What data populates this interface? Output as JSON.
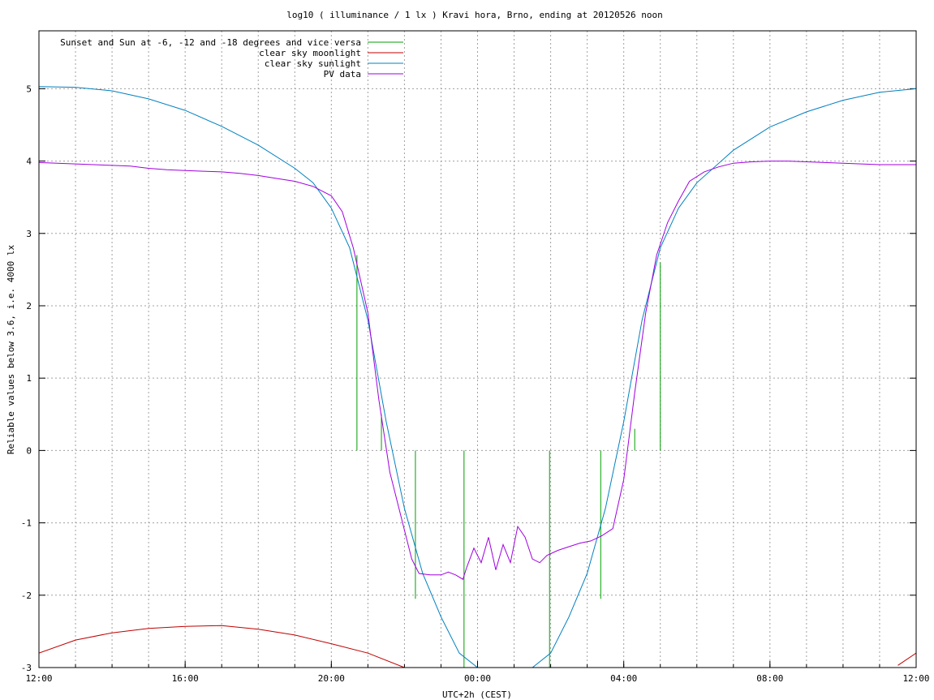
{
  "chart_data": {
    "type": "line",
    "title": "log10 ( illuminance / 1 lx ) Kravi hora, Brno, ending at 20120526 noon",
    "xlabel": "UTC+2h (CEST)",
    "ylabel": "Reliable values below 3.6, i.e. 4000 lx",
    "x_unit": "hours since 12:00 (day before)",
    "xlim": [
      0,
      24
    ],
    "ylim": [
      -3,
      5.8
    ],
    "x_ticks": [
      {
        "value": 0,
        "label": "12:00"
      },
      {
        "value": 4,
        "label": "16:00"
      },
      {
        "value": 8,
        "label": "20:00"
      },
      {
        "value": 12,
        "label": "00:00"
      },
      {
        "value": 16,
        "label": "04:00"
      },
      {
        "value": 20,
        "label": "08:00"
      },
      {
        "value": 24,
        "label": "12:00"
      }
    ],
    "y_ticks": [
      {
        "value": -3,
        "label": "-3"
      },
      {
        "value": -2,
        "label": "-2"
      },
      {
        "value": -1,
        "label": "-1"
      },
      {
        "value": 0,
        "label": "0"
      },
      {
        "value": 1,
        "label": "1"
      },
      {
        "value": 2,
        "label": "2"
      },
      {
        "value": 3,
        "label": "3"
      },
      {
        "value": 4,
        "label": "4"
      },
      {
        "value": 5,
        "label": "5"
      }
    ],
    "grid": true,
    "legend_position": "top-left",
    "series": [
      {
        "name": "Sunset and Sun at -6, -12 and -18 degrees and vice versa",
        "color": "#00a000",
        "style": "vertical-markers",
        "markers": [
          {
            "x": 8.7,
            "y_top": 2.7,
            "y_bottom": 0
          },
          {
            "x": 9.37,
            "y_top": 0.5,
            "y_bottom": 0
          },
          {
            "x": 10.3,
            "y_top": 0,
            "y_bottom": -2.05
          },
          {
            "x": 11.63,
            "y_top": 0,
            "y_bottom": -3
          },
          {
            "x": 13.97,
            "y_top": 0,
            "y_bottom": -3
          },
          {
            "x": 15.37,
            "y_top": 0,
            "y_bottom": -2.05
          },
          {
            "x": 16.3,
            "y_top": 0.3,
            "y_bottom": 0
          },
          {
            "x": 17.0,
            "y_top": 2.6,
            "y_bottom": 0
          }
        ]
      },
      {
        "name": "clear sky moonlight",
        "color": "#c00000",
        "style": "line",
        "x": [
          0,
          1,
          2,
          3,
          4,
          5,
          6,
          7,
          8,
          9,
          10,
          23.5,
          24
        ],
        "y": [
          -2.8,
          -2.62,
          -2.52,
          -2.46,
          -2.43,
          -2.42,
          -2.47,
          -2.55,
          -2.67,
          -2.8,
          -3.0,
          -2.97,
          -2.8
        ]
      },
      {
        "name": "clear sky sunlight",
        "color": "#0080c0",
        "style": "line",
        "x": [
          0,
          1,
          2,
          3,
          4,
          5,
          6,
          7,
          7.5,
          8,
          8.5,
          9,
          9.5,
          10,
          10.5,
          11,
          11.5,
          12,
          13.5,
          14,
          14.5,
          15,
          15.5,
          16,
          16.5,
          17,
          17.5,
          18,
          19,
          20,
          21,
          22,
          23,
          24
        ],
        "y": [
          5.03,
          5.02,
          4.97,
          4.86,
          4.7,
          4.48,
          4.22,
          3.9,
          3.7,
          3.35,
          2.8,
          1.8,
          0.4,
          -0.8,
          -1.7,
          -2.3,
          -2.8,
          -3.0,
          -3.0,
          -2.8,
          -2.3,
          -1.7,
          -0.8,
          0.4,
          1.8,
          2.8,
          3.35,
          3.7,
          4.15,
          4.47,
          4.68,
          4.84,
          4.95,
          5.0
        ]
      },
      {
        "name": "PV data",
        "color": "#a000e0",
        "style": "line",
        "x": [
          0,
          0.5,
          1,
          1.5,
          2,
          2.5,
          3,
          3.5,
          4,
          4.5,
          5,
          5.5,
          6,
          6.5,
          7,
          7.5,
          8,
          8.3,
          8.6,
          9,
          9.3,
          9.6,
          10,
          10.2,
          10.4,
          10.7,
          11,
          11.2,
          11.4,
          11.6,
          11.7,
          11.9,
          12.1,
          12.3,
          12.5,
          12.7,
          12.9,
          13.1,
          13.3,
          13.5,
          13.7,
          13.9,
          14.2,
          14.5,
          14.8,
          15.1,
          15.4,
          15.7,
          16,
          16.3,
          16.6,
          16.9,
          17.2,
          17.5,
          17.8,
          18.2,
          18.6,
          19,
          19.5,
          20,
          20.5,
          21,
          21.5,
          22,
          22.5,
          23,
          23.5,
          24
        ],
        "y": [
          3.98,
          3.97,
          3.96,
          3.95,
          3.94,
          3.93,
          3.9,
          3.88,
          3.87,
          3.86,
          3.85,
          3.83,
          3.8,
          3.76,
          3.72,
          3.65,
          3.52,
          3.3,
          2.8,
          1.9,
          0.7,
          -0.3,
          -1.1,
          -1.5,
          -1.7,
          -1.72,
          -1.72,
          -1.68,
          -1.72,
          -1.78,
          -1.62,
          -1.35,
          -1.55,
          -1.2,
          -1.65,
          -1.3,
          -1.55,
          -1.05,
          -1.2,
          -1.5,
          -1.55,
          -1.45,
          -1.38,
          -1.33,
          -1.28,
          -1.25,
          -1.18,
          -1.08,
          -0.4,
          0.8,
          1.9,
          2.7,
          3.15,
          3.45,
          3.72,
          3.85,
          3.92,
          3.97,
          3.99,
          4.0,
          4.0,
          3.99,
          3.98,
          3.97,
          3.96,
          3.95,
          3.95,
          3.95
        ]
      }
    ]
  }
}
